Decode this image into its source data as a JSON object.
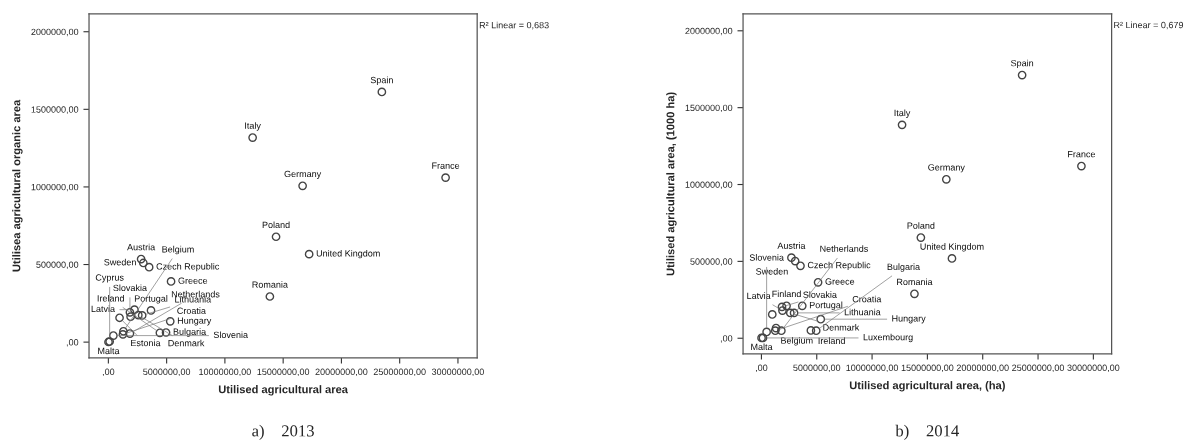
{
  "chart_data": [
    {
      "type": "scatter",
      "title": "a)    2013",
      "xlabel": "Utilised agricultural area",
      "ylabel": "Utilisea agricultural organic area",
      "marker": "circle",
      "grid": false,
      "xlim": [
        -1660000,
        31650000
      ],
      "ylim": [
        -102000,
        2115000
      ],
      "xticks": [
        {
          "value": 0,
          "label": ",00"
        },
        {
          "value": 5000000,
          "label": "5000000,00"
        },
        {
          "value": 10000000,
          "label": "10000000,00"
        },
        {
          "value": 15000000,
          "label": "15000000,00"
        },
        {
          "value": 20000000,
          "label": "20000000,00"
        },
        {
          "value": 25000000,
          "label": "25000000,00"
        },
        {
          "value": 30000000,
          "label": "30000000,00"
        }
      ],
      "yticks": [
        {
          "value": 0,
          "label": ",00"
        },
        {
          "value": 500000,
          "label": "500000,00"
        },
        {
          "value": 1000000,
          "label": "1000000,00"
        },
        {
          "value": 1500000,
          "label": "1500000,00"
        },
        {
          "value": 2000000,
          "label": "2000000,00"
        }
      ],
      "series": [
        {
          "color": "#444444",
          "x": [
            23470000,
            12380000,
            16670000,
            28940000,
            14390000,
            17230000,
            13860000,
            2810000,
            3000000,
            3500000,
            5380000,
            3660000,
            5310000,
            960000,
            1850000,
            2240000,
            1910000,
            2570000,
            2900000,
            430000,
            1290000,
            1250000,
            1850000,
            4420000,
            4950000,
            10000,
            110000
          ],
          "values": [
            1612000,
            1318000,
            1007000,
            1060000,
            679000,
            567000,
            294000,
            535000,
            510000,
            483000,
            391000,
            204000,
            134000,
            157000,
            192000,
            209000,
            164000,
            174000,
            172000,
            42000,
            70000,
            50000,
            55000,
            60000,
            62000,
            1000,
            4000
          ]
        }
      ],
      "annotations": [
        "R² Linear = 0,683",
        {
          "text": "Spain",
          "x": 23470000,
          "y": 1612000
        },
        {
          "text": "Italy",
          "x": 12380000,
          "y": 1318000
        },
        {
          "text": "Germany",
          "x": 16670000,
          "y": 1007000
        },
        {
          "text": "France",
          "x": 28940000,
          "y": 1060000
        },
        {
          "text": "Poland",
          "x": 14390000,
          "y": 679000
        },
        {
          "text": "United Kingdom",
          "x": 17230000,
          "y": 567000
        },
        {
          "text": "Romania",
          "x": 13860000,
          "y": 294000
        },
        {
          "text": "Austria",
          "x": 2810000,
          "y": 535000
        },
        {
          "text": "Czech Republic",
          "x": 3500000,
          "y": 483000
        },
        {
          "text": "Sweden",
          "x": 3000000,
          "y": 510000
        },
        {
          "text": "Greece",
          "x": 5380000,
          "y": 391000
        },
        {
          "text": "Slovakia",
          "x": 1850000,
          "y": 192000
        },
        {
          "text": "Latvia",
          "x": 2240000,
          "y": 209000
        },
        {
          "text": "Portugal",
          "x": 3660000,
          "y": 204000
        },
        {
          "text": "Estonia",
          "x": 960000,
          "y": 157000
        },
        {
          "text": "Bulgaria",
          "x": 4950000,
          "y": 62000
        },
        {
          "text": "Hungary",
          "x": 5310000,
          "y": 134000
        },
        {
          "text": "Lithuania",
          "x": 2900000,
          "y": 172000
        },
        {
          "text": "Croatia",
          "x": 1250000,
          "y": 50000
        },
        {
          "text": "Denmark",
          "x": 2570000,
          "y": 174000
        },
        {
          "text": "Ireland",
          "x": 4420000,
          "y": 60000
        },
        {
          "text": "Belgium",
          "x": 1290000,
          "y": 70000
        },
        {
          "text": "Slovenia",
          "x": 430000,
          "y": 42000
        },
        {
          "text": "Malta",
          "x": 10000,
          "y": 1000
        },
        {
          "text": "Cyprus",
          "x": 110000,
          "y": 4000
        },
        {
          "text": "Netherlands",
          "x": 1850000,
          "y": 55000
        }
      ]
    },
    {
      "type": "scatter",
      "title": "b)    2014",
      "xlabel": "Utilised agricultural area, (ha)",
      "ylabel": "Utilised agricultural area, (1000 ha)",
      "marker": "circle",
      "grid": false,
      "xlim": [
        -1660000,
        31650000
      ],
      "ylim": [
        -102000,
        2110000
      ],
      "xticks": [
        {
          "value": 0,
          "label": ",00"
        },
        {
          "value": 5000000,
          "label": "5000000,00"
        },
        {
          "value": 10000000,
          "label": "10000000,00"
        },
        {
          "value": 15000000,
          "label": "15000000,00"
        },
        {
          "value": 20000000,
          "label": "20000000,00"
        },
        {
          "value": 25000000,
          "label": "25000000,00"
        },
        {
          "value": 30000000,
          "label": "30000000,00"
        }
      ],
      "yticks": [
        {
          "value": 0,
          "label": ",00"
        },
        {
          "value": 500000,
          "label": "500000,00"
        },
        {
          "value": 1000000,
          "label": "1000000,00"
        },
        {
          "value": 1500000,
          "label": "1500000,00"
        },
        {
          "value": 2000000,
          "label": "2000000,00"
        }
      ],
      "series": [
        {
          "color": "#444444",
          "x": [
            23560000,
            12710000,
            16710000,
            28920000,
            14410000,
            17220000,
            13830000,
            2710000,
            3050000,
            3530000,
            5120000,
            3690000,
            5360000,
            980000,
            1860000,
            2270000,
            1900000,
            2610000,
            2950000,
            470000,
            1320000,
            1250000,
            1800000,
            4470000,
            4950000,
            10000,
            140000
          ],
          "values": [
            1712000,
            1388000,
            1034000,
            1120000,
            655000,
            519000,
            289000,
            524000,
            502000,
            471000,
            364000,
            211000,
            124000,
            155000,
            204000,
            211000,
            180000,
            165000,
            165000,
            41000,
            66000,
            49000,
            49000,
            51000,
            49000,
            2000,
            2000
          ]
        }
      ],
      "annotations": [
        "R² Linear = 0,679",
        {
          "text": "Spain",
          "x": 23560000,
          "y": 1712000
        },
        {
          "text": "Italy",
          "x": 12710000,
          "y": 1388000
        },
        {
          "text": "Germany",
          "x": 16710000,
          "y": 1034000
        },
        {
          "text": "France",
          "x": 28920000,
          "y": 1120000
        },
        {
          "text": "Poland",
          "x": 14410000,
          "y": 655000
        },
        {
          "text": "United Kingdom",
          "x": 17220000,
          "y": 519000
        },
        {
          "text": "Romania",
          "x": 13830000,
          "y": 289000
        },
        {
          "text": "Austria",
          "x": 2710000,
          "y": 524000
        },
        {
          "text": "Czech Republic",
          "x": 3530000,
          "y": 471000
        },
        {
          "text": "Sweden",
          "x": 3050000,
          "y": 502000
        },
        {
          "text": "Finland",
          "x": 2270000,
          "y": 211000
        },
        {
          "text": "Greece",
          "x": 5120000,
          "y": 364000
        },
        {
          "text": "Portugal",
          "x": 3690000,
          "y": 211000
        },
        {
          "text": "Belgium",
          "x": 1320000,
          "y": 66000
        },
        {
          "text": "Slovakia",
          "x": 1860000,
          "y": 204000
        },
        {
          "text": "Denmark",
          "x": 2610000,
          "y": 165000
        },
        {
          "text": "Latvia",
          "x": 1900000,
          "y": 180000
        },
        {
          "text": "Lithuania",
          "x": 2950000,
          "y": 165000
        },
        {
          "text": "Croatia",
          "x": 1250000,
          "y": 49000
        },
        {
          "text": "Ireland",
          "x": 4470000,
          "y": 51000
        },
        {
          "text": "Hungary",
          "x": 5360000,
          "y": 124000
        },
        {
          "text": "Slovenia",
          "x": 470000,
          "y": 41000
        },
        {
          "text": "Netherlands",
          "x": 1800000,
          "y": 49000
        },
        {
          "text": "Malta",
          "x": 10000,
          "y": 2000
        },
        {
          "text": "Luxembourg",
          "x": 140000,
          "y": 2000
        },
        {
          "text": "Bulgaria",
          "x": 4950000,
          "y": 49000
        }
      ]
    }
  ]
}
